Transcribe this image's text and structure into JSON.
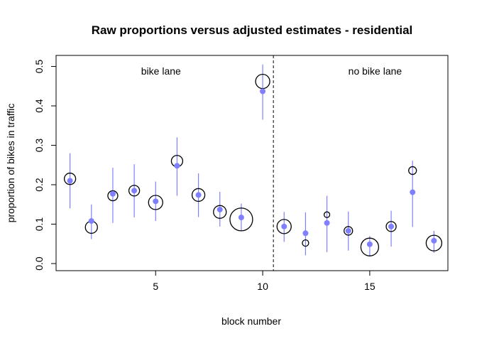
{
  "chart_data": {
    "type": "scatter",
    "title": "Raw proportions versus adjusted estimates - residential",
    "xlabel": "block number",
    "ylabel": "proportion of bikes in traffic",
    "xlim": [
      0.35,
      18.65
    ],
    "ylim": [
      -0.018,
      0.528
    ],
    "x_ticks": [
      5,
      10,
      15
    ],
    "y_ticks": [
      0.0,
      0.1,
      0.2,
      0.3,
      0.4,
      0.5
    ],
    "x_tick_labels": [
      "5",
      "10",
      "15"
    ],
    "y_tick_labels": [
      "0.0",
      "0.1",
      "0.2",
      "0.3",
      "0.4",
      "0.5"
    ],
    "divider_x": 10.5,
    "region_labels": [
      {
        "text": "bike lane",
        "x": 5.25,
        "y": 0.488
      },
      {
        "text": "no bike lane",
        "x": 15.25,
        "y": 0.488
      }
    ],
    "marker_color": "#8080ff",
    "series": [
      {
        "name": "",
        "type": "raw_proportion",
        "x": [
          1,
          2,
          3,
          4,
          5,
          6,
          7,
          8,
          9,
          10,
          11,
          12,
          13,
          14,
          15,
          16,
          17,
          18
        ],
        "y": [
          0.215,
          0.092,
          0.172,
          0.185,
          0.155,
          0.26,
          0.174,
          0.131,
          0.112,
          0.462,
          0.094,
          0.052,
          0.124,
          0.083,
          0.042,
          0.094,
          0.236,
          0.052
        ],
        "weight": [
          0.8,
          0.85,
          0.7,
          0.75,
          1.0,
          0.8,
          0.9,
          0.9,
          1.6,
          1.0,
          1.0,
          0.45,
          0.4,
          0.6,
          1.25,
          0.7,
          0.55,
          1.1
        ]
      },
      {
        "name": "",
        "type": "adjusted_estimate",
        "x": [
          1,
          2,
          3,
          4,
          5,
          6,
          7,
          8,
          9,
          10,
          11,
          12,
          13,
          14,
          15,
          16,
          17,
          18
        ],
        "y": [
          0.21,
          0.108,
          0.177,
          0.185,
          0.158,
          0.248,
          0.174,
          0.137,
          0.117,
          0.437,
          0.094,
          0.077,
          0.103,
          0.083,
          0.049,
          0.094,
          0.181,
          0.058
        ],
        "lower": [
          0.14,
          0.062,
          0.103,
          0.117,
          0.108,
          0.172,
          0.118,
          0.094,
          0.082,
          0.365,
          0.055,
          0.021,
          0.029,
          0.033,
          0.018,
          0.043,
          0.093,
          0.027
        ],
        "upper": [
          0.28,
          0.15,
          0.243,
          0.252,
          0.208,
          0.32,
          0.229,
          0.182,
          0.152,
          0.505,
          0.131,
          0.13,
          0.172,
          0.132,
          0.07,
          0.134,
          0.261,
          0.083
        ]
      }
    ]
  }
}
